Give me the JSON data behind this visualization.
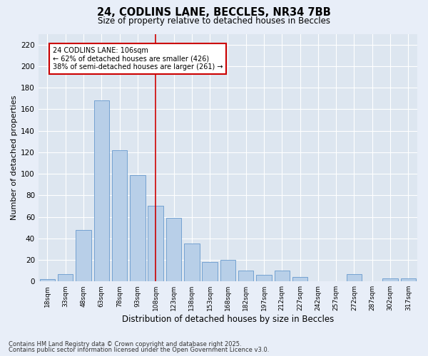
{
  "title_line1": "24, CODLINS LANE, BECCLES, NR34 7BB",
  "title_line2": "Size of property relative to detached houses in Beccles",
  "xlabel": "Distribution of detached houses by size in Beccles",
  "ylabel": "Number of detached properties",
  "categories": [
    "18sqm",
    "33sqm",
    "48sqm",
    "63sqm",
    "78sqm",
    "93sqm",
    "108sqm",
    "123sqm",
    "138sqm",
    "153sqm",
    "168sqm",
    "182sqm",
    "197sqm",
    "212sqm",
    "227sqm",
    "242sqm",
    "257sqm",
    "272sqm",
    "287sqm",
    "302sqm",
    "317sqm"
  ],
  "values": [
    2,
    7,
    48,
    168,
    122,
    99,
    70,
    59,
    35,
    18,
    20,
    10,
    6,
    10,
    4,
    0,
    0,
    7,
    0,
    3,
    3
  ],
  "bar_color": "#b8cfe8",
  "bar_edge_color": "#6699cc",
  "fig_background_color": "#e8eef8",
  "ax_background_color": "#dde6f0",
  "grid_color": "#ffffff",
  "vline_x": 6,
  "vline_color": "#cc0000",
  "annotation_text": "24 CODLINS LANE: 106sqm\n← 62% of detached houses are smaller (426)\n38% of semi-detached houses are larger (261) →",
  "annotation_box_color": "#cc0000",
  "ylim": [
    0,
    230
  ],
  "yticks": [
    0,
    20,
    40,
    60,
    80,
    100,
    120,
    140,
    160,
    180,
    200,
    220
  ],
  "footnote1": "Contains HM Land Registry data © Crown copyright and database right 2025.",
  "footnote2": "Contains public sector information licensed under the Open Government Licence v3.0."
}
